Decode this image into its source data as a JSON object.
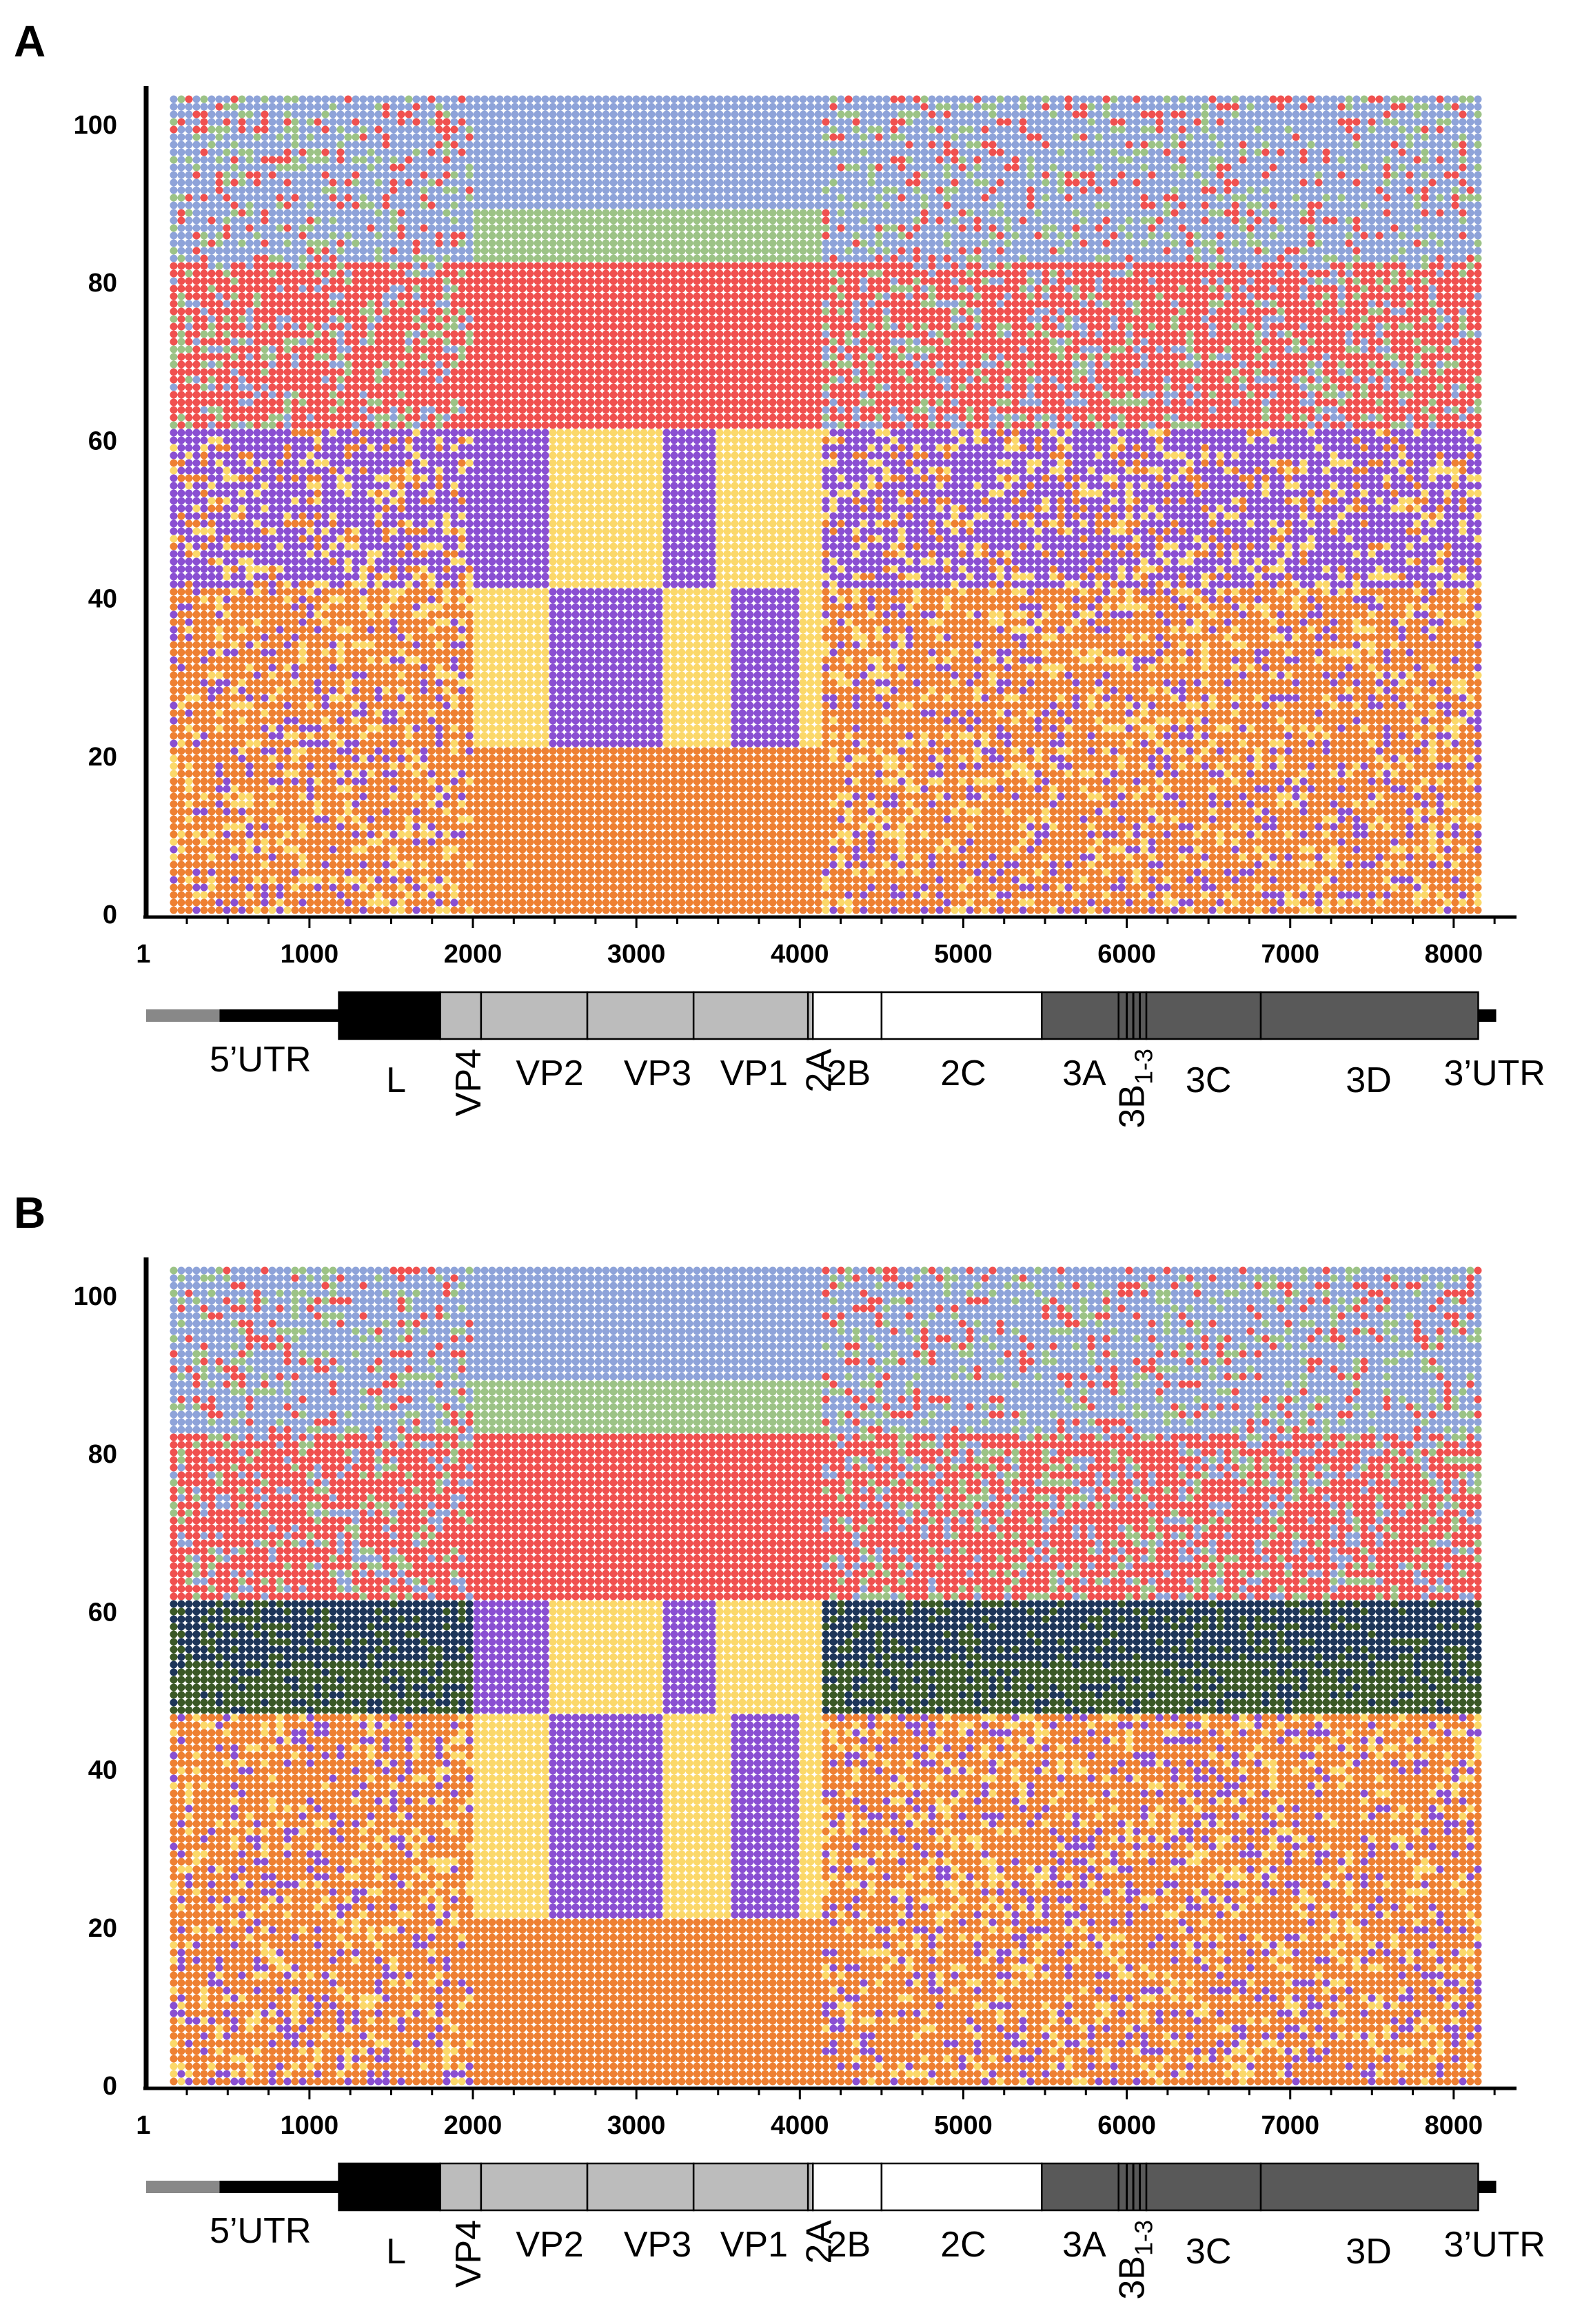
{
  "colors": {
    "red": "#f0504f",
    "blue": "#8ea3d9",
    "green": "#9cc386",
    "yellow": "#fbd86a",
    "purple": "#8a4fd2",
    "orange": "#ee8032",
    "navy": "#1d3559",
    "darkgreen": "#3a5826"
  },
  "chart_data": [
    {
      "type": "heatmap",
      "panel_label": "A",
      "xlim": [
        1,
        8300
      ],
      "ylim": [
        0,
        104
      ],
      "yticks": [
        "0",
        "20",
        "40",
        "60",
        "80",
        "100"
      ],
      "xticks": [
        "1",
        "1000",
        "2000",
        "3000",
        "4000",
        "5000",
        "6000",
        "7000",
        "8000"
      ],
      "bands": [
        {
          "y_range": [
            0,
            20
          ],
          "dominant": "orange",
          "mix": [
            "orange",
            "yellow",
            "purple"
          ]
        },
        {
          "y_range": [
            21,
            40
          ],
          "dominant": "orange",
          "mix": [
            "orange",
            "yellow",
            "purple"
          ]
        },
        {
          "y_range": [
            41,
            60
          ],
          "dominant": "purple",
          "mix": [
            "purple",
            "yellow",
            "orange"
          ]
        },
        {
          "y_range": [
            61,
            82
          ],
          "dominant": "red",
          "mix": [
            "red",
            "blue",
            "green"
          ]
        },
        {
          "y_range": [
            83,
            104
          ],
          "dominant": "blue",
          "mix": [
            "red",
            "blue",
            "green"
          ]
        }
      ],
      "capsid_blocks": [
        {
          "x_range": [
            2000,
            4150
          ],
          "y_range": [
            0,
            20
          ],
          "color": "orange"
        },
        {
          "x_range": [
            2000,
            2450
          ],
          "y_range": [
            21,
            40
          ],
          "color": "yellow"
        },
        {
          "x_range": [
            2450,
            3150
          ],
          "y_range": [
            21,
            40
          ],
          "color": "purple"
        },
        {
          "x_range": [
            3150,
            3600
          ],
          "y_range": [
            21,
            40
          ],
          "color": "yellow"
        },
        {
          "x_range": [
            3600,
            4000
          ],
          "y_range": [
            21,
            40
          ],
          "color": "purple"
        },
        {
          "x_range": [
            4000,
            4150
          ],
          "y_range": [
            21,
            40
          ],
          "color": "yellow"
        },
        {
          "x_range": [
            2000,
            2450
          ],
          "y_range": [
            41,
            60
          ],
          "color": "purple"
        },
        {
          "x_range": [
            2450,
            3150
          ],
          "y_range": [
            41,
            60
          ],
          "color": "yellow"
        },
        {
          "x_range": [
            3150,
            3500
          ],
          "y_range": [
            41,
            60
          ],
          "color": "purple"
        },
        {
          "x_range": [
            3500,
            4150
          ],
          "y_range": [
            41,
            60
          ],
          "color": "yellow"
        },
        {
          "x_range": [
            2000,
            4150
          ],
          "y_range": [
            61,
            82
          ],
          "color": "red"
        },
        {
          "x_range": [
            2000,
            4150
          ],
          "y_range": [
            83,
            88
          ],
          "color": "green"
        },
        {
          "x_range": [
            2000,
            4150
          ],
          "y_range": [
            89,
            104
          ],
          "color": "blue"
        }
      ],
      "navy_band": null
    },
    {
      "type": "heatmap",
      "panel_label": "B",
      "xlim": [
        1,
        8300
      ],
      "ylim": [
        0,
        104
      ],
      "yticks": [
        "0",
        "20",
        "40",
        "60",
        "80",
        "100"
      ],
      "xticks": [
        "1",
        "1000",
        "2000",
        "3000",
        "4000",
        "5000",
        "6000",
        "7000",
        "8000"
      ],
      "bands": [
        {
          "y_range": [
            0,
            20
          ],
          "dominant": "orange",
          "mix": [
            "orange",
            "yellow",
            "purple"
          ]
        },
        {
          "y_range": [
            21,
            46
          ],
          "dominant": "orange",
          "mix": [
            "orange",
            "yellow",
            "purple"
          ]
        },
        {
          "y_range": [
            47,
            53
          ],
          "dominant": "darkgreen",
          "mix": [
            "darkgreen",
            "navy"
          ]
        },
        {
          "y_range": [
            54,
            60
          ],
          "dominant": "navy",
          "mix": [
            "navy",
            "darkgreen"
          ]
        },
        {
          "y_range": [
            61,
            82
          ],
          "dominant": "red",
          "mix": [
            "red",
            "blue",
            "green"
          ]
        },
        {
          "y_range": [
            83,
            104
          ],
          "dominant": "blue",
          "mix": [
            "red",
            "blue",
            "green"
          ]
        }
      ],
      "capsid_blocks": [
        {
          "x_range": [
            2000,
            4150
          ],
          "y_range": [
            0,
            20
          ],
          "color": "orange"
        },
        {
          "x_range": [
            2000,
            2450
          ],
          "y_range": [
            21,
            46
          ],
          "color": "yellow"
        },
        {
          "x_range": [
            2450,
            3150
          ],
          "y_range": [
            21,
            46
          ],
          "color": "purple"
        },
        {
          "x_range": [
            3150,
            3600
          ],
          "y_range": [
            21,
            46
          ],
          "color": "yellow"
        },
        {
          "x_range": [
            3600,
            4000
          ],
          "y_range": [
            21,
            46
          ],
          "color": "purple"
        },
        {
          "x_range": [
            4000,
            4150
          ],
          "y_range": [
            21,
            46
          ],
          "color": "yellow"
        },
        {
          "x_range": [
            2000,
            2450
          ],
          "y_range": [
            47,
            60
          ],
          "color": "purple"
        },
        {
          "x_range": [
            2450,
            3150
          ],
          "y_range": [
            47,
            60
          ],
          "color": "yellow"
        },
        {
          "x_range": [
            3150,
            3500
          ],
          "y_range": [
            47,
            60
          ],
          "color": "purple"
        },
        {
          "x_range": [
            3500,
            4150
          ],
          "y_range": [
            47,
            60
          ],
          "color": "yellow"
        },
        {
          "x_range": [
            2000,
            4150
          ],
          "y_range": [
            61,
            82
          ],
          "color": "red"
        },
        {
          "x_range": [
            2000,
            4150
          ],
          "y_range": [
            83,
            88
          ],
          "color": "green"
        },
        {
          "x_range": [
            2000,
            4150
          ],
          "y_range": [
            89,
            104
          ],
          "color": "blue"
        }
      ]
    }
  ],
  "genome_map": {
    "segments": [
      {
        "name": "5'UTR-grey",
        "x_range": [
          1,
          450
        ],
        "shade": "#888888",
        "style": "line"
      },
      {
        "name": "5'UTR-black",
        "x_range": [
          450,
          1180
        ],
        "shade": "#000000",
        "style": "line"
      },
      {
        "name": "L",
        "x_range": [
          1180,
          1800
        ],
        "shade": "#000000",
        "style": "box"
      },
      {
        "name": "VP4",
        "x_range": [
          1800,
          2050
        ],
        "shade": "#bcbcbc",
        "style": "box"
      },
      {
        "name": "VP2",
        "x_range": [
          2050,
          2700
        ],
        "shade": "#bcbcbc",
        "style": "box"
      },
      {
        "name": "VP3",
        "x_range": [
          2700,
          3350
        ],
        "shade": "#bcbcbc",
        "style": "box"
      },
      {
        "name": "VP1",
        "x_range": [
          3350,
          4050
        ],
        "shade": "#bcbcbc",
        "style": "box"
      },
      {
        "name": "2A",
        "x_range": [
          4050,
          4080
        ],
        "shade": "#bcbcbc",
        "style": "box"
      },
      {
        "name": "2B",
        "x_range": [
          4080,
          4500
        ],
        "shade": "#ffffff",
        "style": "box"
      },
      {
        "name": "2C",
        "x_range": [
          4500,
          5480
        ],
        "shade": "#ffffff",
        "style": "box"
      },
      {
        "name": "3A",
        "x_range": [
          5480,
          5950
        ],
        "shade": "#595959",
        "style": "box"
      },
      {
        "name": "3B",
        "x_range": [
          5950,
          6120
        ],
        "shade": "#595959",
        "style": "box"
      },
      {
        "name": "3C",
        "x_range": [
          6120,
          6820
        ],
        "shade": "#595959",
        "style": "box"
      },
      {
        "name": "3D",
        "x_range": [
          6820,
          8150
        ],
        "shade": "#595959",
        "style": "box"
      },
      {
        "name": "3'UTR",
        "x_range": [
          8150,
          8260
        ],
        "shade": "#000000",
        "style": "line"
      }
    ],
    "labels": {
      "utr5": "5’UTR",
      "l": "L",
      "vp4": "VP4",
      "vp2": "VP2",
      "vp3": "VP3",
      "vp1": "VP1",
      "p2a": "2A",
      "p2b": "2B",
      "p2c": "2C",
      "p3a": "3A",
      "p3b": "3B",
      "p3b_sub": "1-3",
      "p3c": "3C",
      "p3d": "3D",
      "utr3": "3’UTR"
    },
    "label_positions": {
      "utr5": 700,
      "l": 1530,
      "vp2": 2470,
      "vp3": 3130,
      "vp1": 3720,
      "p2b": 4300,
      "p2c": 5000,
      "p3a": 5740,
      "p3c": 6500,
      "p3d": 7480,
      "utr3": 8250,
      "vp4": 1970,
      "p2a": 4115,
      "p3b": 6030
    }
  }
}
